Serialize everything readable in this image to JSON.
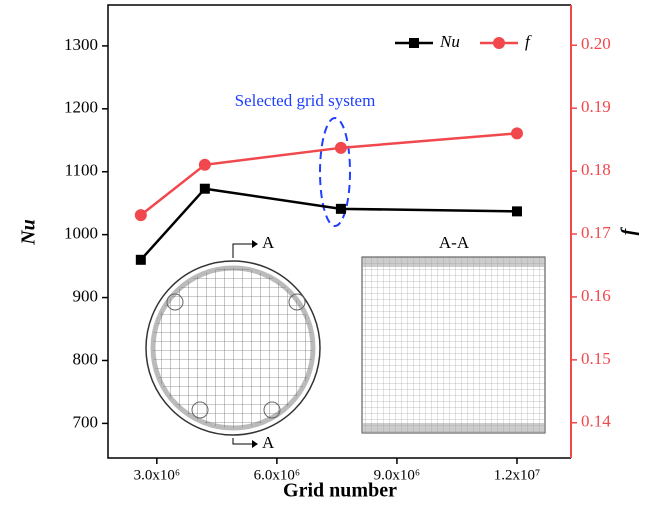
{
  "chart_data": {
    "type": "line",
    "x": [
      2600000,
      4200000,
      7600000,
      12000000
    ],
    "xlim": [
      1780000,
      13350000
    ],
    "xticks": [
      {
        "value": 3000000,
        "label": "3.0x10⁶"
      },
      {
        "value": 6000000,
        "label": "6.0x10⁶"
      },
      {
        "value": 9000000,
        "label": "9.0x10⁶"
      },
      {
        "value": 12000000,
        "label": "1.2x10⁷"
      }
    ],
    "ylim": [
      645,
      1365
    ],
    "yticks": [
      700,
      800,
      900,
      1000,
      1100,
      1200,
      1300
    ],
    "y2lim": [
      0.1344,
      0.2064
    ],
    "y2ticks": [
      0.14,
      0.15,
      0.16,
      0.17,
      0.18,
      0.19,
      {
        "value": 0.2,
        "label": "0.20"
      }
    ],
    "xlabel": "Grid number",
    "ylabel": "Nu",
    "y2label": "f",
    "y2color": "#f0484c",
    "legend": "top-right",
    "series": [
      {
        "name": "Nu",
        "color": "#000000",
        "marker": "square",
        "values": [
          960,
          1073,
          1041,
          1037
        ]
      },
      {
        "name": "f",
        "color": "#f0484c",
        "marker": "circle",
        "axis": "y2",
        "values": [
          0.173,
          0.181,
          0.1837,
          0.186
        ]
      }
    ],
    "annotation": "Selected grid system",
    "inset_labels": [
      "A",
      "A",
      "A-A"
    ]
  }
}
